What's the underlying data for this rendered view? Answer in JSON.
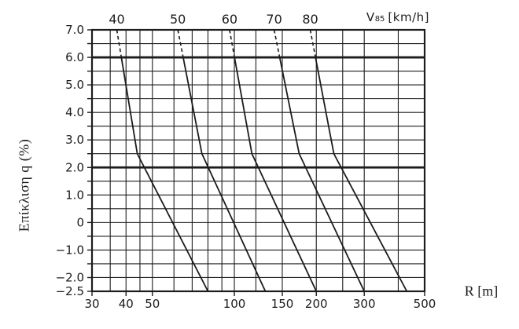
{
  "chart_data": {
    "type": "line",
    "title": "",
    "xlabel": "R [m]",
    "ylabel": "Επίκλιση q (%)",
    "top_axis_label": {
      "main": "V",
      "sub": "85",
      "unit": "[km/h]"
    },
    "x_scale": "log",
    "xlim": [
      30,
      500
    ],
    "ylim": [
      -2.5,
      7.0
    ],
    "grid": true,
    "legend_position": "top-axis",
    "x_gridlines": [
      30,
      35,
      40,
      45,
      50,
      60,
      70,
      80,
      90,
      100,
      120,
      150,
      200,
      250,
      300,
      400,
      500
    ],
    "y_gridline_step": 0.5,
    "x_ticks": [
      {
        "value": 30,
        "label": "30"
      },
      {
        "value": 40,
        "label": "40"
      },
      {
        "value": 50,
        "label": "50"
      },
      {
        "value": 100,
        "label": "100"
      },
      {
        "value": 150,
        "label": "150"
      },
      {
        "value": 200,
        "label": "200"
      },
      {
        "value": 300,
        "label": "300"
      },
      {
        "value": 500,
        "label": "500"
      }
    ],
    "y_ticks": [
      {
        "value": 7.0,
        "label": "7.0"
      },
      {
        "value": 6.0,
        "label": "6.0"
      },
      {
        "value": 5.0,
        "label": "5.0"
      },
      {
        "value": 4.0,
        "label": "4.0"
      },
      {
        "value": 3.0,
        "label": "3.0"
      },
      {
        "value": 2.0,
        "label": "2.0"
      },
      {
        "value": 1.0,
        "label": "1.0"
      },
      {
        "value": 0,
        "label": "0"
      },
      {
        "value": -1.0,
        "label": "−1.0"
      },
      {
        "value": -2.0,
        "label": "−2.0"
      },
      {
        "value": -2.5,
        "label": "−2.5"
      }
    ],
    "emphasized_y_values": [
      6.0,
      2.0
    ],
    "dashed_above_q": 6.0,
    "ink_color": "#1c1c1c",
    "series": [
      {
        "name": "40",
        "unit": "km/h",
        "points": [
          [
            37,
            7.0
          ],
          [
            44,
            2.5
          ],
          [
            80,
            -2.5
          ]
        ]
      },
      {
        "name": "50",
        "unit": "km/h",
        "points": [
          [
            62,
            7.0
          ],
          [
            76,
            2.5
          ],
          [
            130,
            -2.5
          ]
        ]
      },
      {
        "name": "60",
        "unit": "km/h",
        "points": [
          [
            96,
            7.0
          ],
          [
            116,
            2.5
          ],
          [
            200,
            -2.5
          ]
        ]
      },
      {
        "name": "70",
        "unit": "km/h",
        "points": [
          [
            140,
            7.0
          ],
          [
            173,
            2.5
          ],
          [
            300,
            -2.5
          ]
        ]
      },
      {
        "name": "80",
        "unit": "km/h",
        "points": [
          [
            190,
            7.0
          ],
          [
            232,
            2.5
          ],
          [
            430,
            -2.5
          ]
        ]
      }
    ]
  }
}
